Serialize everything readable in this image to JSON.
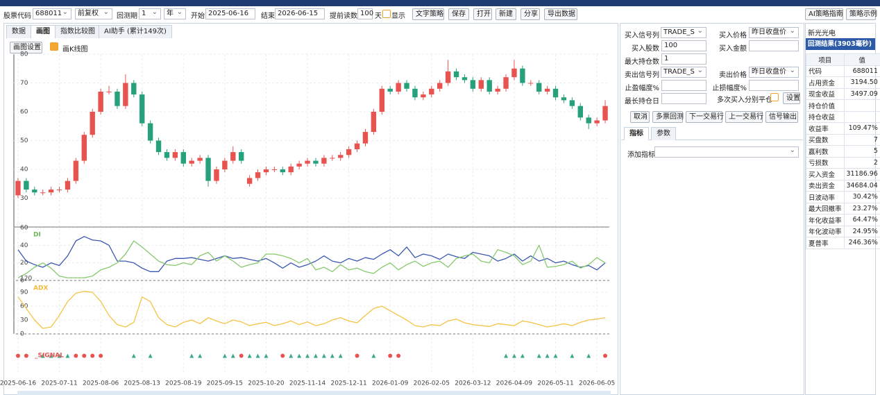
{
  "toolbar": {
    "stock_label": "股票代码",
    "stock_code": "688011",
    "adjust": "前复权",
    "period_label": "回测期",
    "period": "1",
    "period_unit": "年",
    "start_label": "开始",
    "start": "2025-06-16",
    "end_label": "结束",
    "end": "2026-06-15",
    "preload_label": "提前读数",
    "preload": "100",
    "preload_unit": "天",
    "show_label": "显示",
    "buttons": [
      "文字策略",
      "保存",
      "打开",
      "新建",
      "分享",
      "导出数据"
    ],
    "right_buttons": [
      "AI策略指南",
      "策略示例"
    ]
  },
  "tabs": [
    "数据",
    "画图",
    "指数比较图",
    "AI助手 (累计149次)"
  ],
  "plot_settings": "画图设置",
  "kline_label": "画K线图",
  "form": {
    "buy_signal_label": "买入信号列",
    "buy_signal": "TRADE_S",
    "buy_price_label": "买入价格",
    "buy_price": "昨日收盘价",
    "buy_shares_label": "买入股数",
    "buy_shares": "100",
    "buy_amount_label": "买入金额",
    "max_hold_label": "最大持仓数",
    "max_hold": "1",
    "sell_signal_label": "卖出信号列",
    "sell_signal": "TRADE_S",
    "sell_price_label": "卖出价格",
    "sell_price": "昨日收盘价",
    "take_profit_label": "止盈幅度%",
    "stop_loss_label": "止损幅度%",
    "max_days_label": "最长持仓日",
    "multi_close_label": "多次买入分别平仓",
    "settings": "设置",
    "actions": [
      "取消",
      "多票回测",
      "下一交易行",
      "上一交易行",
      "信号输出"
    ],
    "tabs": [
      "指标",
      "参数"
    ],
    "add_indicator_label": "添加指标"
  },
  "results": {
    "stock_name": "新光光电",
    "title": "回测结果(3903毫秒)",
    "header": [
      "项目",
      "值"
    ],
    "rows": [
      [
        "代码",
        "688011"
      ],
      [
        "占用资金",
        "3194.50"
      ],
      [
        "现金收益",
        "3497.09"
      ],
      [
        "持仓价值"
      ],
      [
        "持仓收益"
      ],
      [
        "收益率",
        "109.47%"
      ],
      [
        "买盘数",
        "7"
      ],
      [
        "赢利数",
        "5"
      ],
      [
        "亏损数",
        "2"
      ],
      [
        "买入资金",
        "31186.96"
      ],
      [
        "卖出资金",
        "34684.04"
      ],
      [
        "日波动率",
        "30.42%"
      ],
      [
        "最大回撤率",
        "23.27%"
      ],
      [
        "年化收益率",
        "64.47%"
      ],
      [
        "年化波动率",
        "24.95%"
      ],
      [
        "夏普率",
        "246.36%"
      ]
    ]
  },
  "chart_data": [
    {
      "type": "candlestick",
      "up_color": "#e8534f",
      "down_color": "#26a17b",
      "grid": true,
      "xlim": [
        -0.5,
        71.5
      ],
      "xticks": [
        {
          "value": 0,
          "label": "2025-06-16"
        },
        {
          "value": 5,
          "label": "2025-07-11"
        },
        {
          "value": 10,
          "label": "2025-08-06"
        },
        {
          "value": 15,
          "label": "2025-08-13"
        },
        {
          "value": 20,
          "label": "2025-08-19"
        },
        {
          "value": 25,
          "label": "2025-09-15"
        },
        {
          "value": 30,
          "label": "2025-10-20"
        },
        {
          "value": 35,
          "label": "2025-11-14"
        },
        {
          "value": 40,
          "label": "2025-12-11"
        },
        {
          "value": 45,
          "label": "2026-01-09"
        },
        {
          "value": 50,
          "label": "2026-02-05"
        },
        {
          "value": 55,
          "label": "2026-03-12"
        },
        {
          "value": 60,
          "label": "2026-04-09"
        },
        {
          "value": 65,
          "label": "2026-05-11"
        },
        {
          "value": 70,
          "label": "2026-06-05"
        }
      ],
      "ylim": [
        20,
        80
      ],
      "yticks": [
        30,
        40,
        50,
        60,
        70,
        80
      ],
      "open": [
        31,
        36,
        33,
        32,
        32,
        33,
        33,
        36,
        43,
        52,
        60,
        67,
        67,
        62,
        70,
        66,
        56,
        50,
        46,
        44,
        46,
        42,
        43,
        44,
        36,
        40,
        43,
        46,
        35,
        37,
        39,
        40,
        40,
        39,
        41,
        42,
        43,
        42,
        44,
        44,
        45,
        47,
        49,
        53,
        60,
        68,
        67,
        70,
        68,
        65,
        66,
        68,
        70,
        74,
        72,
        71,
        68,
        71,
        67,
        68,
        72,
        75,
        70,
        70,
        67,
        68,
        65,
        64,
        62,
        58,
        56,
        57
      ],
      "high": [
        37,
        37,
        34,
        33,
        34,
        34,
        37,
        44,
        53,
        61,
        68,
        69,
        68,
        73,
        71,
        67,
        57,
        51,
        47,
        47,
        47,
        44,
        45,
        45,
        41,
        44,
        48,
        47,
        38,
        40,
        41,
        41,
        41,
        42,
        43,
        44,
        44,
        45,
        45,
        46,
        48,
        50,
        54,
        61,
        69,
        69,
        71,
        71,
        69,
        67,
        69,
        71,
        78,
        75,
        73,
        72,
        72,
        72,
        69,
        73,
        78,
        76,
        71,
        71,
        69,
        69,
        66,
        65,
        63,
        59,
        58,
        64
      ],
      "low": [
        30,
        32,
        31,
        31,
        31,
        32,
        32,
        35,
        42,
        51,
        59,
        66,
        61,
        61,
        65,
        55,
        49,
        45,
        43,
        43,
        41,
        41,
        42,
        34,
        35,
        39,
        42,
        42,
        34,
        36,
        38,
        39,
        38,
        38,
        40,
        41,
        41,
        41,
        43,
        43,
        44,
        46,
        48,
        52,
        59,
        66,
        66,
        67,
        64,
        64,
        65,
        67,
        69,
        71,
        70,
        67,
        67,
        66,
        66,
        67,
        71,
        69,
        69,
        66,
        66,
        64,
        63,
        61,
        57,
        54,
        55,
        56
      ],
      "close": [
        36,
        33,
        32,
        32,
        33,
        33,
        36,
        43,
        52,
        60,
        67,
        67,
        62,
        70,
        66,
        56,
        50,
        46,
        44,
        46,
        42,
        43,
        44,
        36,
        40,
        43,
        46,
        43,
        37,
        39,
        40,
        40,
        39,
        41,
        42,
        43,
        42,
        44,
        44,
        45,
        47,
        49,
        53,
        60,
        68,
        67,
        70,
        68,
        65,
        66,
        68,
        70,
        74,
        72,
        71,
        68,
        71,
        67,
        68,
        72,
        75,
        70,
        70,
        67,
        68,
        65,
        64,
        62,
        58,
        56,
        57,
        62
      ]
    },
    {
      "type": "line",
      "title": "DI",
      "title_color": "#6cb85a",
      "grid": true,
      "ylim": [
        0,
        60
      ],
      "yticks": [
        0,
        20,
        40,
        60
      ],
      "series": [
        {
          "color": "#3a58b0",
          "values": [
            35,
            22,
            18,
            15,
            20,
            17,
            28,
            45,
            50,
            46,
            45,
            40,
            22,
            22,
            20,
            14,
            10,
            10,
            22,
            25,
            25,
            26,
            24,
            22,
            25,
            28,
            25,
            26,
            24,
            22,
            25,
            20,
            14,
            20,
            15,
            18,
            22,
            28,
            22,
            20,
            25,
            22,
            26,
            24,
            30,
            35,
            28,
            38,
            26,
            30,
            28,
            24,
            30,
            27,
            25,
            32,
            30,
            28,
            22,
            25,
            30,
            22,
            28,
            22,
            25,
            20,
            22,
            18,
            15,
            17,
            12,
            20
          ]
        },
        {
          "color": "#86c96d",
          "values": [
            3,
            8,
            15,
            20,
            14,
            5,
            3,
            3,
            3,
            5,
            12,
            15,
            20,
            30,
            45,
            38,
            30,
            22,
            18,
            17,
            20,
            18,
            28,
            32,
            22,
            28,
            22,
            15,
            18,
            20,
            30,
            30,
            28,
            25,
            20,
            25,
            12,
            15,
            10,
            18,
            12,
            14,
            10,
            8,
            15,
            20,
            12,
            18,
            22,
            16,
            20,
            22,
            15,
            25,
            28,
            30,
            22,
            20,
            35,
            32,
            28,
            18,
            22,
            40,
            15,
            16,
            18,
            22,
            14,
            18,
            26,
            20
          ]
        }
      ]
    },
    {
      "type": "line",
      "title": "ADX",
      "title_color": "#f2bb3c",
      "grid": true,
      "ylim": [
        0,
        120
      ],
      "yticks": [
        0,
        30,
        60,
        90,
        120
      ],
      "series": [
        {
          "color": "#f5c445",
          "values": [
            80,
            55,
            30,
            12,
            15,
            40,
            70,
            88,
            92,
            90,
            70,
            40,
            20,
            15,
            25,
            80,
            70,
            35,
            20,
            15,
            25,
            30,
            22,
            35,
            28,
            22,
            30,
            26,
            18,
            22,
            25,
            18,
            22,
            28,
            20,
            26,
            18,
            22,
            30,
            35,
            28,
            24,
            40,
            55,
            60,
            50,
            40,
            30,
            18,
            15,
            20,
            18,
            28,
            32,
            24,
            20,
            18,
            16,
            22,
            20,
            18,
            28,
            25,
            20,
            15,
            18,
            22,
            18,
            25,
            30,
            32,
            35
          ]
        }
      ]
    },
    {
      "type": "signal",
      "title": "_SIGNAL",
      "title_color": "#e8534f",
      "buy_color": "#3aa88c",
      "sell_color": "#e8534f",
      "values": [
        -1,
        -1,
        null,
        1,
        1,
        1,
        1,
        -1,
        -1,
        -1,
        -1,
        null,
        null,
        null,
        1,
        null,
        1,
        null,
        null,
        null,
        null,
        1,
        1,
        null,
        null,
        1,
        1,
        -1,
        1,
        1,
        1,
        null,
        -1,
        1,
        1,
        1,
        1,
        1,
        1,
        1,
        null,
        -1,
        null,
        1,
        null,
        -1,
        -1,
        null,
        null,
        null,
        null,
        null,
        null,
        null,
        null,
        null,
        null,
        null,
        null,
        1,
        1,
        1,
        null,
        1,
        1,
        1,
        null,
        1,
        null,
        1,
        null,
        -1
      ]
    }
  ]
}
